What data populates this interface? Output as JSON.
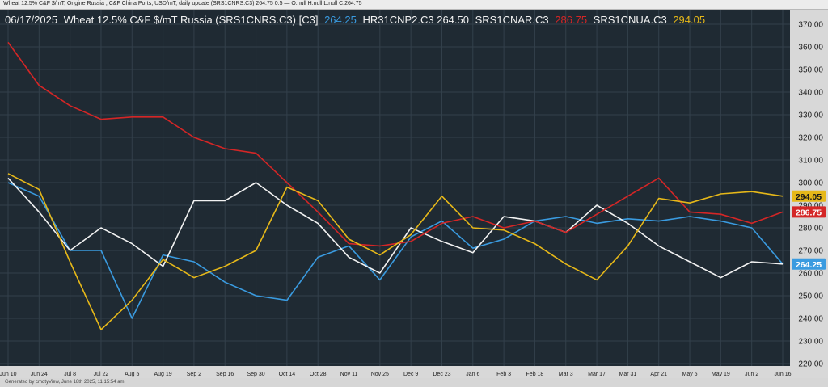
{
  "header_info": "Wheat 12.5%  C&F $/mT, Origine Russia , C&F China Ports, USD/mT, daily update (SRS1CNRS.C3) 264.75 0.5 — O:null H:null L:null C:264.75",
  "footer_info": "Generated by cmdtyView, June 18th 2025, 11:15:54 am",
  "legend": {
    "date": "06/17/2025",
    "title": "Wheat 12.5% C&F $/mT Russia (SRS1CNRS.C3) [C3]",
    "items": [
      {
        "text": "264.25",
        "color": "#3a9be0"
      },
      {
        "text": "HR31CNP2.C3 264.50",
        "color": "#f2f2f2"
      },
      {
        "text": "SRS1CNAR.C3",
        "color": "#f2f2f2"
      },
      {
        "text": "286.75",
        "color": "#d42626"
      },
      {
        "text": "SRS1CNUA.C3",
        "color": "#f2f2f2"
      },
      {
        "text": "294.05",
        "color": "#e6b819"
      }
    ]
  },
  "colors": {
    "background": "#1f2a33",
    "grid": "#33404b",
    "axis_panel": "#d8d8d8"
  },
  "chart_data": {
    "type": "line",
    "x": [
      "Jun 10",
      "Jun 24",
      "Jul 8",
      "Jul 22",
      "Aug 5",
      "Aug 19",
      "Sep 2",
      "Sep 16",
      "Sep 30",
      "Oct 14",
      "Oct 28",
      "Nov 11",
      "Nov 25",
      "Dec 9",
      "Dec 23",
      "Jan 6",
      "Feb 3",
      "Feb 18",
      "Mar 3",
      "Mar 17",
      "Mar 31",
      "Apr 21",
      "May 5",
      "May 19",
      "Jun 2",
      "Jun 16"
    ],
    "ylim": [
      220,
      370
    ],
    "yticks": [
      220,
      230,
      240,
      250,
      260,
      270,
      280,
      290,
      300,
      310,
      320,
      330,
      340,
      350,
      360,
      370
    ],
    "grid": true,
    "series": [
      {
        "name": "SRS1CNRS.C3",
        "color": "#3a9be0",
        "last_label": "264.25",
        "values": [
          300,
          294,
          270,
          270,
          240,
          268,
          265,
          256,
          250,
          248,
          267,
          272,
          257,
          276,
          283,
          271,
          275,
          283,
          285,
          282,
          284,
          283,
          285,
          283,
          280,
          264
        ]
      },
      {
        "name": "HR31CNP2.C3",
        "color": "#f2f2f2",
        "values": [
          302,
          287,
          270,
          280,
          273,
          263,
          292,
          292,
          300,
          290,
          282,
          267,
          260,
          280,
          274,
          269,
          285,
          283,
          278,
          290,
          282,
          272,
          265,
          258,
          265,
          264
        ]
      },
      {
        "name": "SRS1CNAR.C3",
        "color": "#d42626",
        "last_label": "286.75",
        "values": [
          362,
          343,
          334,
          328,
          329,
          329,
          320,
          315,
          313,
          300,
          287,
          273,
          272,
          274,
          282,
          285,
          280,
          283,
          278,
          286,
          294,
          302,
          287,
          286,
          282,
          287
        ]
      },
      {
        "name": "SRS1CNUA.C3",
        "color": "#e6b819",
        "last_label": "294.05",
        "values": [
          304,
          297,
          265,
          235,
          248,
          266,
          258,
          263,
          270,
          298,
          292,
          275,
          268,
          277,
          294,
          280,
          279,
          273,
          264,
          257,
          272,
          293,
          291,
          295,
          296,
          294
        ]
      }
    ]
  }
}
